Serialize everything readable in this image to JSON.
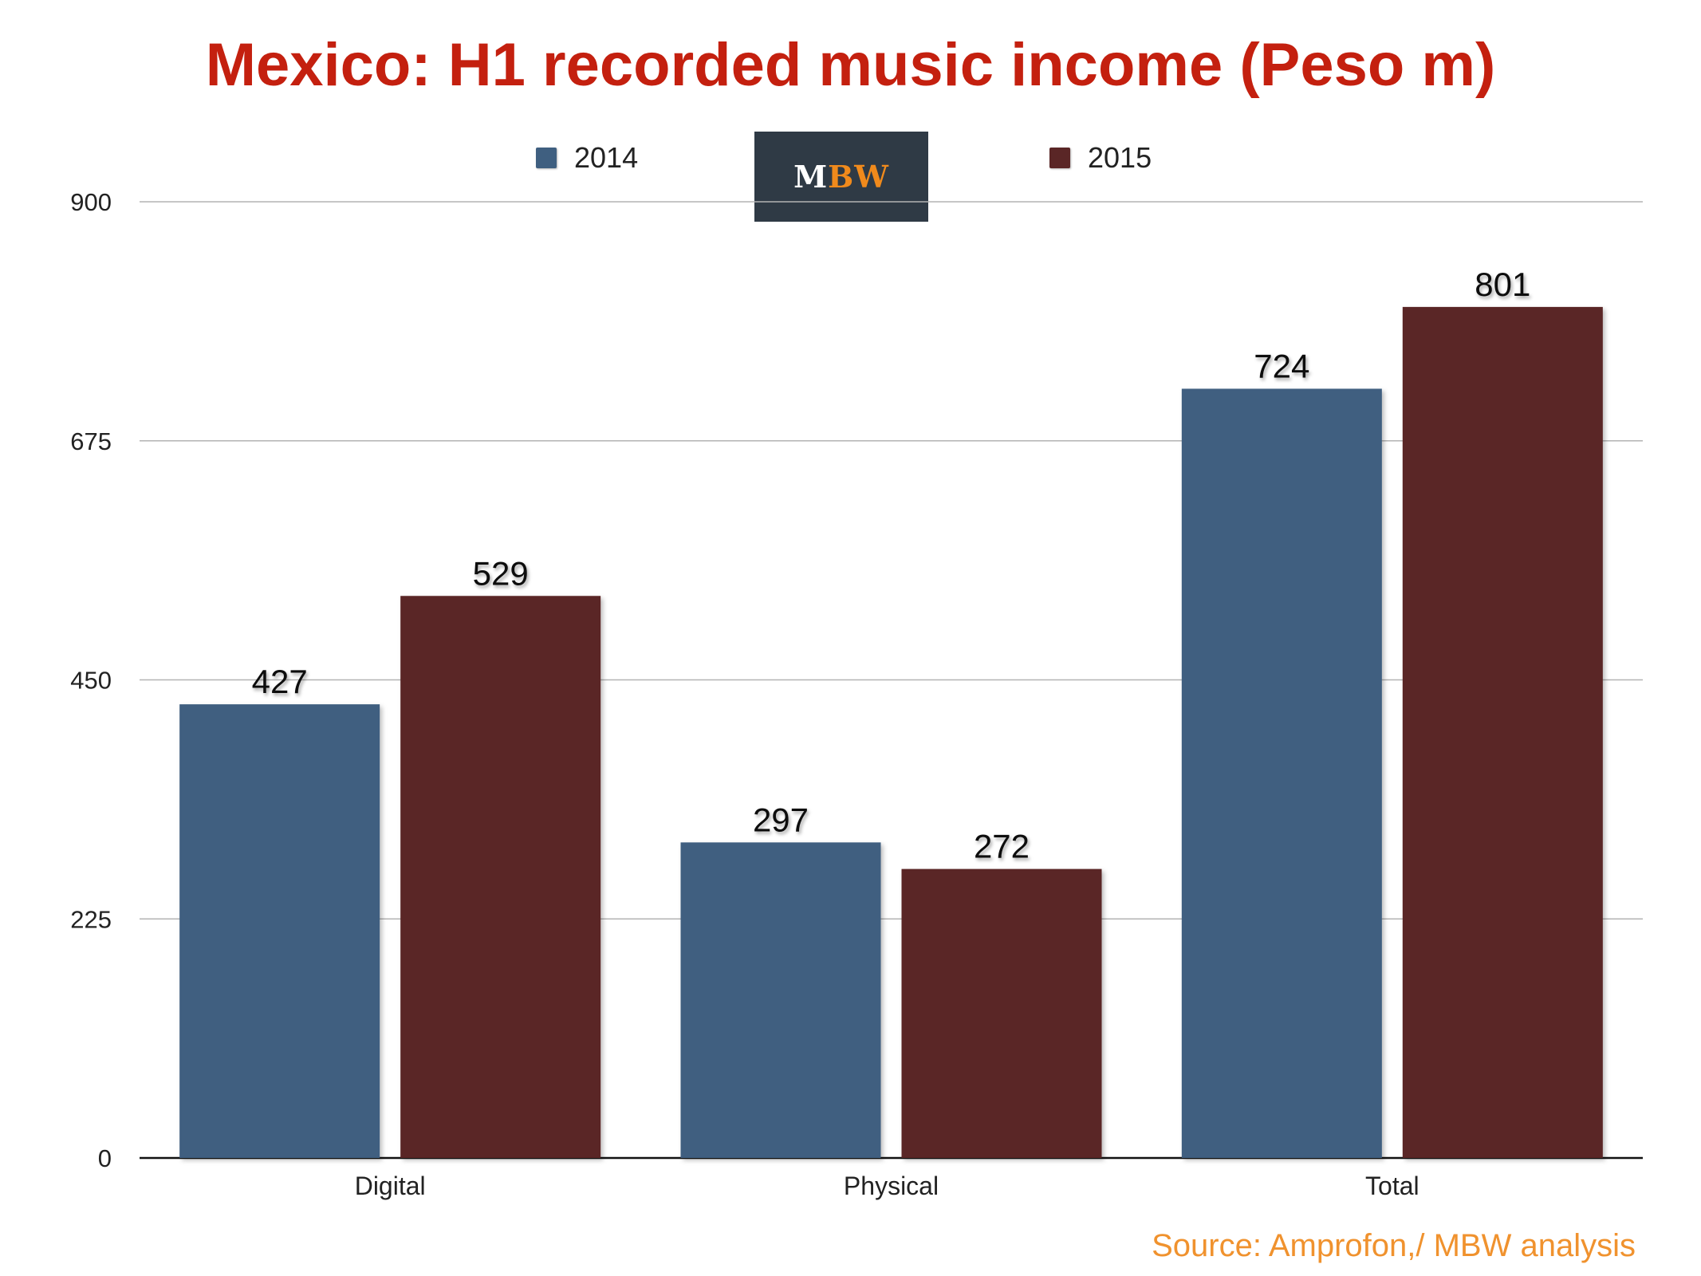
{
  "chart_data": {
    "type": "bar",
    "title": "Mexico: H1 recorded music income (Peso m)",
    "categories": [
      "Digital",
      "Physical",
      "Total"
    ],
    "series": [
      {
        "name": "2014",
        "values": [
          427,
          297,
          724
        ],
        "color": "#3f5f80"
      },
      {
        "name": "2015",
        "values": [
          529,
          272,
          801
        ],
        "color": "#5a2626"
      }
    ],
    "ylim": [
      0,
      900
    ],
    "yticks": [
      "0",
      "225",
      "450",
      "675",
      "900"
    ],
    "grid": true,
    "legend_position": "top-center",
    "source": "Source: Amprofon,/ MBW analysis"
  },
  "logo": {
    "m": "M",
    "bw": "BW"
  }
}
